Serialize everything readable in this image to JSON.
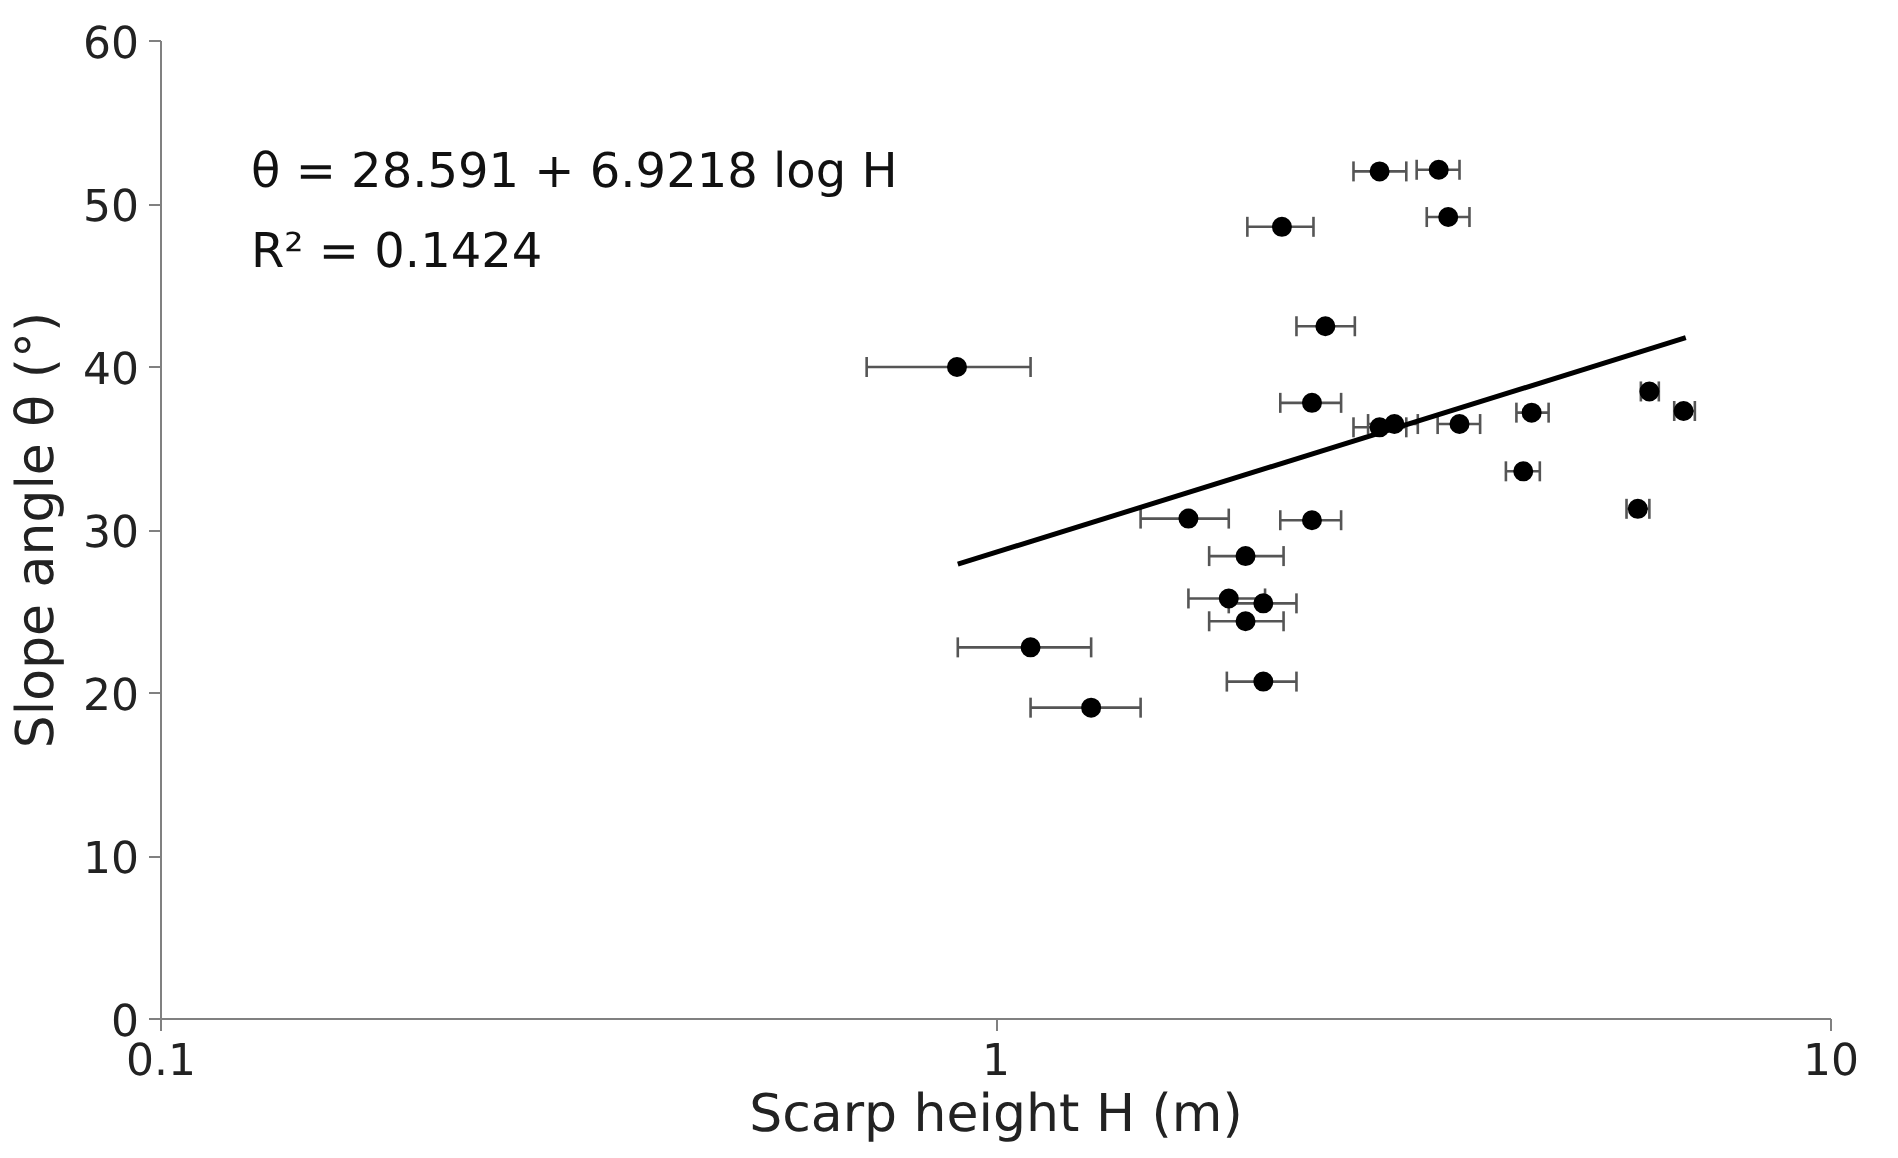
{
  "chart_data": {
    "type": "scatter",
    "xlabel": "Scarp height H (m)",
    "ylabel": "Slope angle θ (°)",
    "annotations": [
      "θ = 28.591 + 6.9218 log H",
      "R² = 0.1424"
    ],
    "log": "x",
    "xlim": [
      0.1,
      10
    ],
    "xticks": [
      0.1,
      1,
      10
    ],
    "ylim": [
      0,
      60
    ],
    "yticks": [
      0,
      10,
      20,
      30,
      40,
      50,
      60
    ],
    "grid": false,
    "marker": "circle",
    "series": [
      {
        "color": "#000000",
        "x": [
          2.88,
          3.39,
          3.48,
          2.2,
          2.48,
          0.898,
          2.39,
          2.88,
          3.0,
          3.59,
          4.38,
          6.06,
          6.66,
          4.28,
          5.87,
          1.7,
          2.39,
          1.99,
          1.9,
          2.09,
          1.99,
          1.1,
          2.09,
          1.3
        ],
        "values": [
          52.0,
          52.1,
          49.2,
          48.6,
          42.5,
          40.0,
          37.8,
          36.3,
          36.5,
          36.5,
          37.2,
          38.5,
          37.3,
          33.6,
          31.3,
          30.7,
          30.6,
          28.4,
          25.8,
          25.5,
          24.4,
          22.8,
          20.7,
          19.1
        ],
        "xerrors": [
          [
            2.68,
            3.1
          ],
          [
            3.19,
            3.59
          ],
          [
            3.28,
            3.69
          ],
          [
            2.0,
            2.4
          ],
          [
            2.29,
            2.69
          ],
          [
            0.7,
            1.1
          ],
          [
            2.19,
            2.59
          ],
          [
            2.68,
            3.1
          ],
          [
            2.79,
            3.2
          ],
          [
            3.38,
            3.8
          ],
          [
            4.2,
            4.59
          ],
          [
            5.92,
            6.22
          ],
          [
            6.49,
            6.87
          ],
          [
            4.08,
            4.48
          ],
          [
            5.69,
            6.06
          ],
          [
            1.49,
            1.9
          ],
          [
            2.19,
            2.59
          ],
          [
            1.8,
            2.21
          ],
          [
            1.7,
            2.1
          ],
          [
            1.9,
            2.29
          ],
          [
            1.8,
            2.21
          ],
          [
            0.9,
            1.3
          ],
          [
            1.89,
            2.29
          ],
          [
            1.1,
            1.49
          ]
        ]
      },
      {
        "type": "line",
        "color": "#000000",
        "marker": "none",
        "x": [
          0.9,
          6.7
        ],
        "values": [
          27.9,
          41.8
        ]
      }
    ]
  }
}
